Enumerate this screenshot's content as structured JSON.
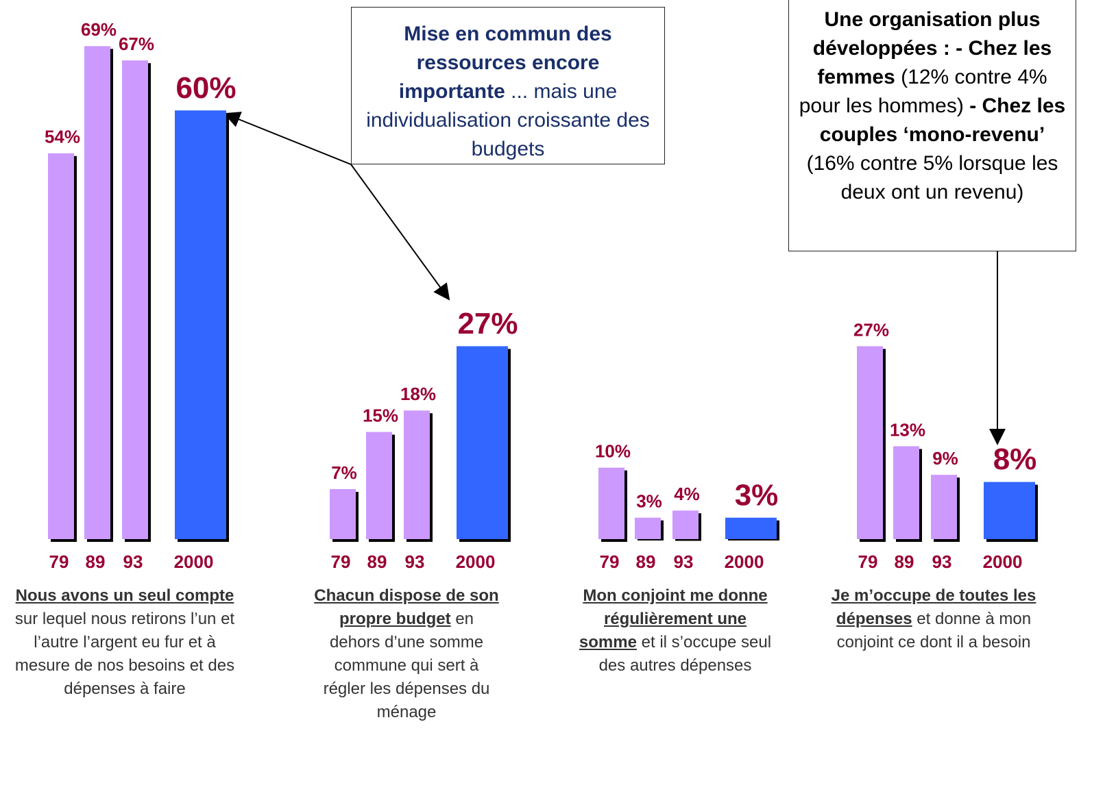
{
  "chart_data": [
    {
      "type": "bar",
      "categories": [
        "79",
        "89",
        "93",
        "2000"
      ],
      "values": [
        54,
        69,
        67,
        60
      ],
      "value_labels": [
        "54%",
        "69%",
        "67%",
        "60%"
      ],
      "colors": [
        "#cc99ff",
        "#cc99ff",
        "#cc99ff",
        "#3366ff"
      ],
      "caption": [
        {
          "text": "Nous avons un seul compte",
          "bold": true
        },
        {
          "text": "sur lequel nous retirons l’un et l’autre l’argent eu fur et à mesure de nos besoins et des dépenses à faire",
          "bold": false
        }
      ]
    },
    {
      "type": "bar",
      "categories": [
        "79",
        "89",
        "93",
        "2000"
      ],
      "values": [
        7,
        15,
        18,
        27
      ],
      "value_labels": [
        "7%",
        "15%",
        "18%",
        "27%"
      ],
      "colors": [
        "#cc99ff",
        "#cc99ff",
        "#cc99ff",
        "#3366ff"
      ],
      "caption": [
        {
          "text": "Chacun dispose de son propre budget",
          "bold": true
        },
        {
          "text": "en dehors d’une somme commune qui sert à régler les dépenses du ménage",
          "bold": false
        }
      ]
    },
    {
      "type": "bar",
      "categories": [
        "79",
        "89",
        "93",
        "2000"
      ],
      "values": [
        10,
        3,
        4,
        3
      ],
      "value_labels": [
        "10%",
        "3%",
        "4%",
        "3%"
      ],
      "colors": [
        "#cc99ff",
        "#cc99ff",
        "#cc99ff",
        "#3366ff"
      ],
      "caption": [
        {
          "text": "Mon conjoint me donne régulièrement une somme",
          "bold": true
        },
        {
          "text": "et il s’occupe seul des autres dépenses",
          "bold": false
        }
      ]
    },
    {
      "type": "bar",
      "categories": [
        "79",
        "89",
        "93",
        "2000"
      ],
      "values": [
        27,
        13,
        9,
        8
      ],
      "value_labels": [
        "27%",
        "13%",
        "9%",
        "8%"
      ],
      "colors": [
        "#cc99ff",
        "#cc99ff",
        "#cc99ff",
        "#3366ff"
      ],
      "caption": [
        {
          "text": "Je m’occupe de toutes les dépenses",
          "bold": true
        },
        {
          "text": "et donne à mon conjoint ce dont il a besoin",
          "bold": false
        }
      ]
    }
  ],
  "annotations": [
    {
      "segments": [
        {
          "text": "Mise en commun des ressources encore importante",
          "bold": true
        },
        {
          "text": "... mais une individualisation croissante des budgets",
          "bold": false
        }
      ]
    },
    {
      "segments": [
        {
          "text": "Une organisation plus développées : - Chez les femmes",
          "bold": true
        },
        {
          "text": "(12% contre 4% pour les hommes)",
          "bold": false
        },
        {
          "text": "- Chez les couples ‘mono-revenu’",
          "bold": true
        },
        {
          "text": "(16% contre 5% lorsque les deux ont un revenu)",
          "bold": false
        }
      ]
    }
  ]
}
